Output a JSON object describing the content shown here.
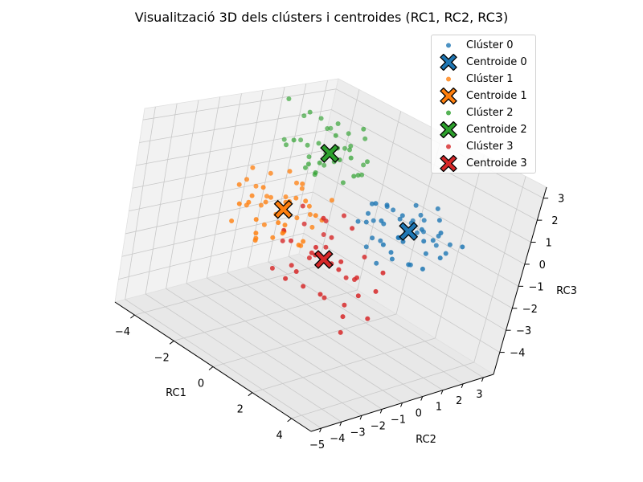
{
  "chart_data": {
    "type": "scatter",
    "title": "Visualització 3D dels clústers i centroides (RC1, RC2, RC3)",
    "xlabel": "RC1",
    "ylabel": "RC2",
    "zlabel": "RC3",
    "xlim": [
      -5,
      5
    ],
    "ylim": [
      -5.5,
      3.5
    ],
    "zlim": [
      -5,
      3.5
    ],
    "x_ticks": [
      "−4",
      "−2",
      "0",
      "2",
      "4"
    ],
    "y_ticks": [
      "−5",
      "−4",
      "−3",
      "−2",
      "−1",
      "0",
      "1",
      "2",
      "3"
    ],
    "z_ticks": [
      "−4",
      "−3",
      "−2",
      "−1",
      "0",
      "1",
      "2",
      "3"
    ],
    "x_tick_values": [
      -4,
      -2,
      0,
      2,
      4
    ],
    "y_tick_values": [
      -5,
      -4,
      -3,
      -2,
      -1,
      0,
      1,
      2,
      3
    ],
    "z_tick_values": [
      -4,
      -3,
      -2,
      -1,
      0,
      1,
      2,
      3
    ],
    "grid": true,
    "legend_position": "top-right",
    "series": [
      {
        "name": "Clúster 0",
        "color": "#1f77b4",
        "marker": "circle",
        "points": [
          [
            1.2,
            0.6,
            0.2
          ],
          [
            1.7,
            0.9,
            -0.2
          ],
          [
            2.4,
            0.5,
            0.4
          ],
          [
            2.0,
            1.4,
            0.1
          ],
          [
            0.8,
            0.3,
            0.9
          ],
          [
            1.5,
            1.0,
            0.5
          ],
          [
            2.8,
            1.2,
            -0.4
          ],
          [
            3.1,
            0.7,
            0.3
          ],
          [
            1.0,
            1.6,
            -0.6
          ],
          [
            0.5,
            0.8,
            0.0
          ],
          [
            1.9,
            -0.2,
            0.7
          ],
          [
            2.6,
            1.8,
            0.2
          ],
          [
            1.3,
            0.1,
            -0.3
          ],
          [
            0.9,
            1.2,
            0.6
          ],
          [
            2.2,
            0.3,
            -0.8
          ],
          [
            3.5,
            1.0,
            0.8
          ],
          [
            1.6,
            2.0,
            0.4
          ],
          [
            2.9,
            0.2,
            1.0
          ],
          [
            0.7,
            0.5,
            -1.0
          ],
          [
            1.8,
            1.3,
            1.2
          ],
          [
            2.5,
            -0.5,
            0.0
          ],
          [
            3.3,
            1.6,
            -0.2
          ],
          [
            1.1,
            -0.1,
            0.3
          ],
          [
            2.1,
            2.3,
            -0.5
          ],
          [
            0.4,
            1.4,
            0.5
          ],
          [
            2.7,
            0.9,
            0.6
          ],
          [
            1.4,
            0.4,
            1.1
          ],
          [
            3.0,
            2.0,
            0.0
          ],
          [
            0.6,
            0.0,
            0.1
          ],
          [
            2.3,
            1.1,
            -1.1
          ],
          [
            1.9,
            0.8,
            -0.1
          ],
          [
            3.6,
            0.4,
            -0.6
          ],
          [
            1.2,
            1.9,
            0.2
          ],
          [
            2.4,
            0.0,
            -0.4
          ],
          [
            4.4,
            1.2,
            0.6
          ],
          [
            1.6,
            -0.3,
            1.3
          ],
          [
            2.8,
            1.5,
            1.0
          ],
          [
            0.9,
            0.9,
            -0.7
          ],
          [
            2.0,
            0.6,
            0.9
          ],
          [
            1.3,
            2.4,
            -0.3
          ],
          [
            3.2,
            -0.3,
            0.4
          ],
          [
            2.6,
            0.7,
            -0.9
          ],
          [
            1.7,
            1.7,
            0.7
          ],
          [
            0.8,
            0.2,
            0.5
          ],
          [
            2.2,
            1.9,
            1.2
          ],
          [
            1.5,
            0.3,
            -1.3
          ],
          [
            3.8,
            0.9,
            -0.1
          ],
          [
            2.9,
            1.3,
            0.2
          ]
        ]
      },
      {
        "name": "Centroide 0",
        "color": "#1f77b4",
        "marker": "X",
        "points": [
          [
            2.0,
            1.0,
            0.2
          ]
        ]
      },
      {
        "name": "Clúster 1",
        "color": "#ff7f0e",
        "marker": "circle",
        "points": [
          [
            -1.5,
            -1.0,
            0.3
          ],
          [
            -0.8,
            -2.0,
            -0.4
          ],
          [
            -2.2,
            -1.5,
            0.1
          ],
          [
            -1.0,
            -0.5,
            -0.8
          ],
          [
            -0.3,
            -2.8,
            0.0
          ],
          [
            -1.8,
            -0.8,
            0.8
          ],
          [
            -2.6,
            -2.2,
            -0.3
          ],
          [
            -0.6,
            -1.4,
            0.6
          ],
          [
            -1.2,
            -3.0,
            -0.2
          ],
          [
            -2.0,
            -0.3,
            0.4
          ],
          [
            -0.2,
            -1.8,
            -1.0
          ],
          [
            -1.6,
            -2.5,
            0.9
          ],
          [
            -2.9,
            -1.2,
            -0.6
          ],
          [
            -0.9,
            -0.9,
            0.2
          ],
          [
            -1.4,
            -1.9,
            -1.2
          ],
          [
            -2.4,
            -0.6,
            -0.1
          ],
          [
            -0.5,
            -2.4,
            0.7
          ],
          [
            -1.9,
            -2.8,
            0.2
          ],
          [
            -3.2,
            -1.8,
            0.5
          ],
          [
            -1.1,
            -1.2,
            1.1
          ],
          [
            -0.7,
            -3.4,
            -0.5
          ],
          [
            -2.1,
            -1.7,
            -1.0
          ],
          [
            -1.3,
            -0.4,
            -0.4
          ],
          [
            -2.7,
            -2.6,
            0.6
          ],
          [
            0.1,
            -1.5,
            0.3
          ],
          [
            -1.7,
            -1.3,
            1.4
          ],
          [
            -0.4,
            -0.7,
            -0.2
          ],
          [
            -2.3,
            -3.1,
            -0.7
          ],
          [
            -1.0,
            -2.3,
            0.0
          ],
          [
            -3.0,
            -0.9,
            -0.3
          ],
          [
            -0.8,
            -1.1,
            -1.4
          ],
          [
            -1.5,
            -3.6,
            0.4
          ],
          [
            -2.5,
            -1.4,
            1.0
          ],
          [
            0.3,
            -2.1,
            -0.6
          ],
          [
            -1.9,
            -2.0,
            0.1
          ],
          [
            -1.2,
            -1.6,
            -0.9
          ],
          [
            -2.8,
            -2.0,
            1.2
          ],
          [
            -0.1,
            -2.6,
            0.9
          ],
          [
            -3.4,
            -1.1,
            0.0
          ],
          [
            -0.6,
            -0.2,
            0.5
          ],
          [
            -1.4,
            -2.7,
            -1.1
          ],
          [
            0.2,
            -3.0,
            -0.2
          ],
          [
            -2.2,
            -2.4,
            0.3
          ],
          [
            -0.9,
            -3.2,
            -0.9
          ],
          [
            -1.7,
            -0.6,
            -0.7
          ]
        ]
      },
      {
        "name": "Centroide 1",
        "color": "#ff7f0e",
        "marker": "X",
        "points": [
          [
            -1.3,
            -1.7,
            0.0
          ]
        ]
      },
      {
        "name": "Clúster 2",
        "color": "#2ca02c",
        "marker": "circle",
        "points": [
          [
            -2.5,
            1.5,
            1.2
          ],
          [
            -3.0,
            2.0,
            0.8
          ],
          [
            -1.8,
            1.0,
            1.6
          ],
          [
            -3.6,
            1.2,
            1.4
          ],
          [
            -2.2,
            2.6,
            0.5
          ],
          [
            -4.0,
            2.4,
            1.8
          ],
          [
            -2.8,
            0.6,
            1.0
          ],
          [
            -1.6,
            1.8,
            0.9
          ],
          [
            -3.4,
            2.8,
            1.1
          ],
          [
            -2.0,
            0.8,
            2.0
          ],
          [
            -4.6,
            1.8,
            2.2
          ],
          [
            -2.6,
            2.2,
            1.7
          ],
          [
            -3.2,
            0.9,
            0.6
          ],
          [
            -1.9,
            2.4,
            1.3
          ],
          [
            -3.8,
            1.6,
            0.7
          ],
          [
            -2.4,
            1.2,
            2.4
          ],
          [
            -4.4,
            3.0,
            1.5
          ],
          [
            -3.0,
            1.8,
            2.6
          ],
          [
            -2.1,
            0.4,
            1.4
          ],
          [
            -3.6,
            2.2,
            0.3
          ],
          [
            -1.4,
            1.4,
            1.0
          ],
          [
            -4.2,
            0.8,
            1.2
          ],
          [
            -2.7,
            2.9,
            1.9
          ],
          [
            -3.3,
            1.4,
            1.6
          ],
          [
            -2.3,
            1.9,
            0.2
          ],
          [
            -4.8,
            2.1,
            0.9
          ],
          [
            -1.7,
            0.7,
            2.2
          ],
          [
            -3.1,
            2.5,
            2.0
          ],
          [
            -2.9,
            1.1,
            0.4
          ],
          [
            -3.9,
            1.9,
            2.4
          ],
          [
            -4.5,
            0.8,
            3.2
          ],
          [
            -2.6,
            3.0,
            0.7
          ],
          [
            -3.5,
            0.4,
            1.8
          ],
          [
            -2.0,
            2.0,
            2.8
          ],
          [
            -4.1,
            2.7,
            0.5
          ],
          [
            -1.5,
            1.2,
            1.8
          ],
          [
            -3.7,
            1.1,
            2.9
          ],
          [
            -2.8,
            2.4,
            1.4
          ],
          [
            -4.9,
            1.4,
            1.0
          ],
          [
            -2.4,
            0.6,
            0.8
          ]
        ]
      },
      {
        "name": "Centroide 2",
        "color": "#2ca02c",
        "marker": "X",
        "points": [
          [
            -2.9,
            1.6,
            1.3
          ]
        ]
      },
      {
        "name": "Clúster 3",
        "color": "#d62728",
        "marker": "circle",
        "points": [
          [
            0.5,
            -1.0,
            -0.5
          ],
          [
            1.2,
            -1.5,
            -1.2
          ],
          [
            -0.3,
            -0.6,
            -0.2
          ],
          [
            0.9,
            -2.2,
            -0.8
          ],
          [
            1.8,
            -0.8,
            -1.6
          ],
          [
            -0.6,
            -1.8,
            -1.0
          ],
          [
            0.2,
            -0.3,
            0.2
          ],
          [
            1.5,
            -2.6,
            -0.3
          ],
          [
            2.4,
            -1.2,
            -2.0
          ],
          [
            0.0,
            -1.4,
            -1.5
          ],
          [
            -1.0,
            -0.9,
            -0.6
          ],
          [
            0.7,
            -0.2,
            -2.2
          ],
          [
            1.9,
            -1.8,
            -1.1
          ],
          [
            3.0,
            -1.0,
            -1.6
          ],
          [
            -0.4,
            -2.4,
            -0.4
          ],
          [
            1.1,
            -0.7,
            0.1
          ],
          [
            2.6,
            -2.0,
            -2.6
          ],
          [
            0.4,
            -1.9,
            -2.4
          ],
          [
            -0.8,
            -1.3,
            0.3
          ],
          [
            1.6,
            -0.4,
            -0.9
          ],
          [
            2.2,
            -2.8,
            -1.8
          ],
          [
            0.8,
            -1.2,
            -2.8
          ],
          [
            -0.2,
            -2.0,
            -1.8
          ],
          [
            1.3,
            -2.4,
            -0.7
          ],
          [
            3.4,
            -1.6,
            -2.4
          ],
          [
            0.1,
            -0.8,
            -1.1
          ],
          [
            2.0,
            -1.4,
            -3.6
          ],
          [
            -1.2,
            -1.6,
            -1.3
          ],
          [
            1.0,
            -2.9,
            -1.4
          ],
          [
            2.8,
            -0.6,
            -1.0
          ],
          [
            0.6,
            -1.6,
            0.4
          ],
          [
            1.7,
            -1.1,
            -2.7
          ],
          [
            -0.5,
            -0.4,
            -0.9
          ],
          [
            2.5,
            -2.3,
            -0.5
          ],
          [
            0.3,
            -2.7,
            -2.0
          ],
          [
            1.4,
            -0.5,
            -1.9
          ],
          [
            -0.9,
            -2.2,
            -2.2
          ]
        ]
      },
      {
        "name": "Centroide 3",
        "color": "#d62728",
        "marker": "X",
        "points": [
          [
            0.8,
            -1.5,
            -1.2
          ]
        ]
      }
    ]
  }
}
